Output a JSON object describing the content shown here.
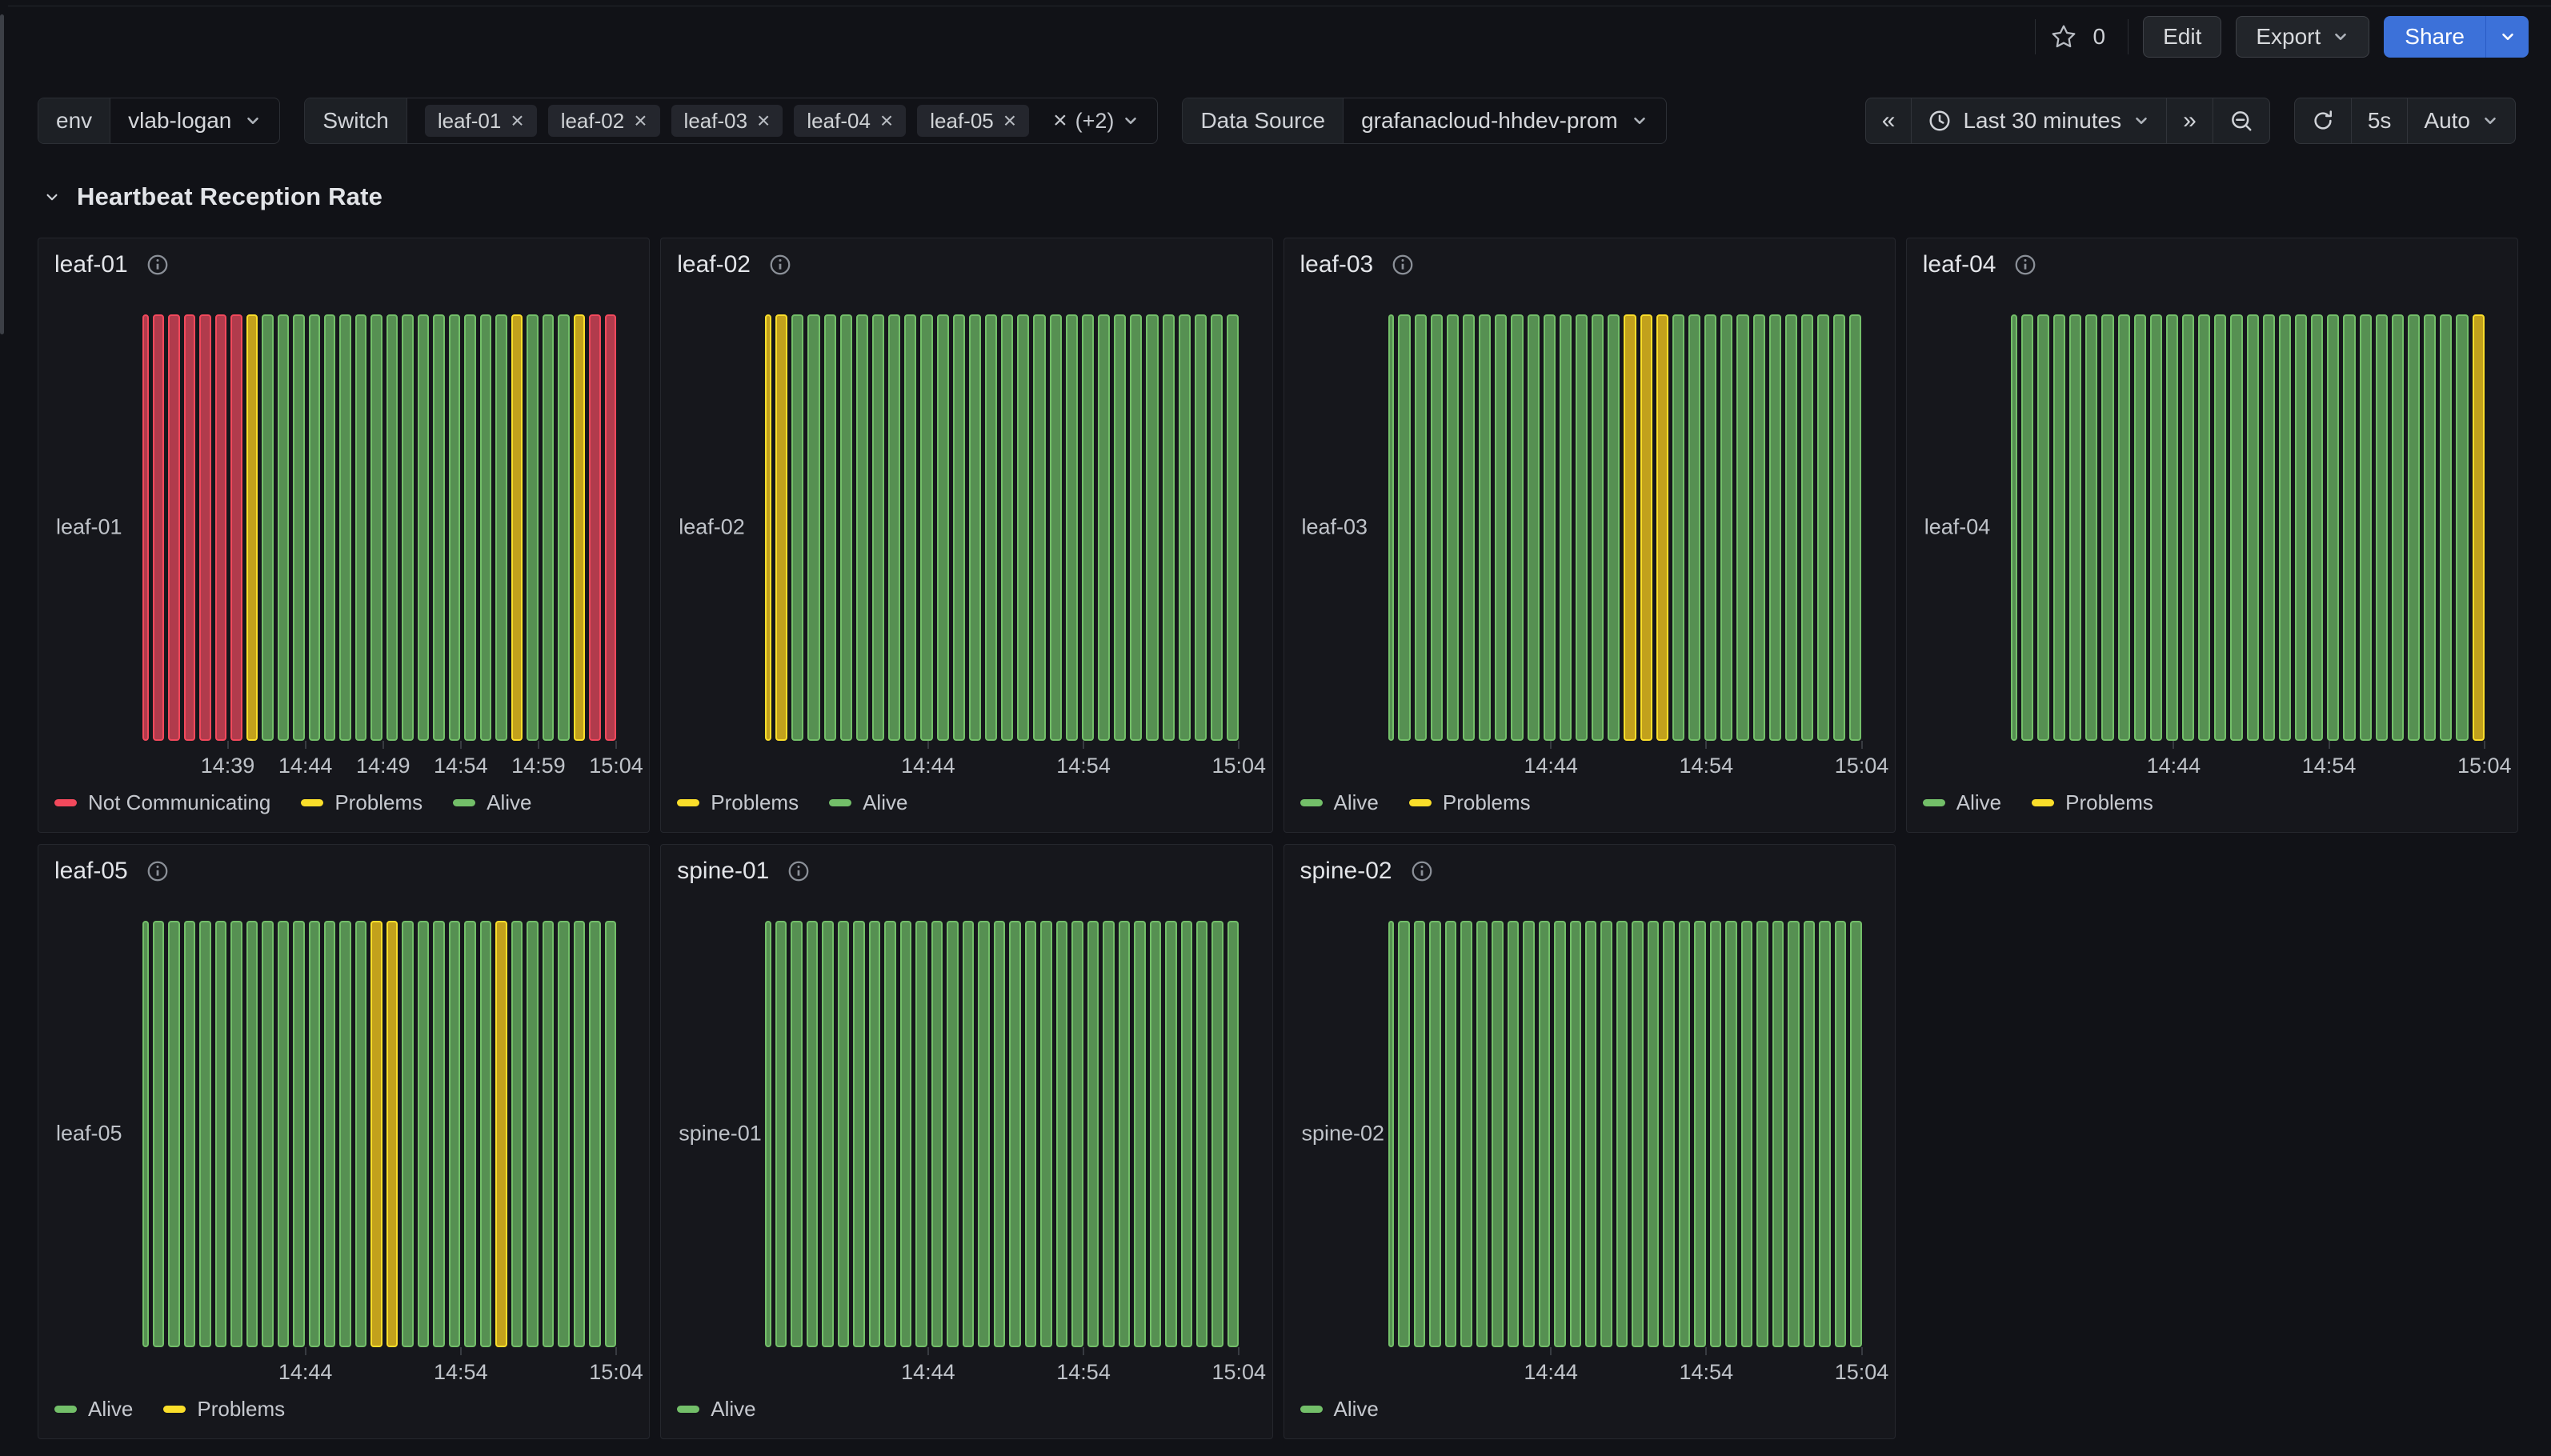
{
  "toolbar": {
    "star_count": "0",
    "edit": "Edit",
    "export": "Export",
    "share": "Share"
  },
  "filterbar": {
    "env_label": "env",
    "env_value": "vlab-logan",
    "switch_label": "Switch",
    "switch_chips": [
      "leaf-01",
      "leaf-02",
      "leaf-03",
      "leaf-04",
      "leaf-05"
    ],
    "switch_more": "(+2)",
    "chip_close_glyph": "×",
    "clear_all_glyph": "×",
    "datasource_label": "Data Source",
    "datasource_value": "grafanacloud-hhdev-prom"
  },
  "timebar": {
    "back_glyph": "«",
    "range": "Last 30 minutes",
    "forward_glyph": "»",
    "interval": "5s",
    "refresh_mode": "Auto"
  },
  "section_title": "Heartbeat Reception Rate",
  "state_colors": {
    "alive": {
      "stroke": "#73BF69",
      "fill": "#569052",
      "legend": "#73BF69"
    },
    "problems": {
      "stroke": "#FADE2A",
      "fill": "#C2A11C",
      "legend": "#FADE2A"
    },
    "not_communicating": {
      "stroke": "#F2495C",
      "fill": "#B13B4C",
      "legend": "#F2495C"
    }
  },
  "chart_data": [
    {
      "type": "state-timeline",
      "title": "leaf-01",
      "y_label": "leaf-01",
      "time_window": [
        "14:34",
        "15:04"
      ],
      "segments": [
        {
          "state": "not_communicating",
          "count": 0.35
        },
        {
          "state": "not_communicating",
          "count": 6
        },
        {
          "state": "problems",
          "count": 1
        },
        {
          "state": "alive",
          "count": 16
        },
        {
          "state": "problems",
          "count": 1
        },
        {
          "state": "alive",
          "count": 3
        },
        {
          "state": "problems",
          "count": 1
        },
        {
          "state": "not_communicating",
          "count": 2
        }
      ],
      "ticks": [
        {
          "label": "14:39",
          "pos": 0.18
        },
        {
          "label": "14:44",
          "pos": 0.344
        },
        {
          "label": "14:49",
          "pos": 0.508
        },
        {
          "label": "14:54",
          "pos": 0.672
        },
        {
          "label": "14:59",
          "pos": 0.836
        },
        {
          "label": "15:04",
          "pos": 1.0
        }
      ],
      "legend": [
        {
          "state": "not_communicating",
          "label": "Not Communicating"
        },
        {
          "state": "problems",
          "label": "Problems"
        },
        {
          "state": "alive",
          "label": "Alive"
        }
      ]
    },
    {
      "type": "state-timeline",
      "title": "leaf-02",
      "y_label": "leaf-02",
      "time_window": [
        "14:34",
        "15:04"
      ],
      "segments": [
        {
          "state": "problems",
          "count": 0.35
        },
        {
          "state": "problems",
          "count": 1
        },
        {
          "state": "alive",
          "count": 28
        }
      ],
      "ticks": [
        {
          "label": "14:44",
          "pos": 0.344
        },
        {
          "label": "14:54",
          "pos": 0.672
        },
        {
          "label": "15:04",
          "pos": 1.0
        }
      ],
      "legend": [
        {
          "state": "problems",
          "label": "Problems"
        },
        {
          "state": "alive",
          "label": "Alive"
        }
      ]
    },
    {
      "type": "state-timeline",
      "title": "leaf-03",
      "y_label": "leaf-03",
      "time_window": [
        "14:34",
        "15:04"
      ],
      "segments": [
        {
          "state": "alive",
          "count": 0.35
        },
        {
          "state": "alive",
          "count": 14
        },
        {
          "state": "problems",
          "count": 3
        },
        {
          "state": "alive",
          "count": 12
        }
      ],
      "ticks": [
        {
          "label": "14:44",
          "pos": 0.344
        },
        {
          "label": "14:54",
          "pos": 0.672
        },
        {
          "label": "15:04",
          "pos": 1.0
        }
      ],
      "legend": [
        {
          "state": "alive",
          "label": "Alive"
        },
        {
          "state": "problems",
          "label": "Problems"
        }
      ]
    },
    {
      "type": "state-timeline",
      "title": "leaf-04",
      "y_label": "leaf-04",
      "time_window": [
        "14:34",
        "15:04"
      ],
      "segments": [
        {
          "state": "alive",
          "count": 0.35
        },
        {
          "state": "alive",
          "count": 28
        },
        {
          "state": "problems",
          "count": 1
        }
      ],
      "ticks": [
        {
          "label": "14:44",
          "pos": 0.344
        },
        {
          "label": "14:54",
          "pos": 0.672
        },
        {
          "label": "15:04",
          "pos": 1.0
        }
      ],
      "legend": [
        {
          "state": "alive",
          "label": "Alive"
        },
        {
          "state": "problems",
          "label": "Problems"
        }
      ]
    },
    {
      "type": "state-timeline",
      "title": "leaf-05",
      "y_label": "leaf-05",
      "time_window": [
        "14:34",
        "15:04"
      ],
      "segments": [
        {
          "state": "alive",
          "count": 0.35
        },
        {
          "state": "alive",
          "count": 14
        },
        {
          "state": "problems",
          "count": 2
        },
        {
          "state": "alive",
          "count": 6
        },
        {
          "state": "problems",
          "count": 1
        },
        {
          "state": "alive",
          "count": 7
        }
      ],
      "ticks": [
        {
          "label": "14:44",
          "pos": 0.344
        },
        {
          "label": "14:54",
          "pos": 0.672
        },
        {
          "label": "15:04",
          "pos": 1.0
        }
      ],
      "legend": [
        {
          "state": "alive",
          "label": "Alive"
        },
        {
          "state": "problems",
          "label": "Problems"
        }
      ]
    },
    {
      "type": "state-timeline",
      "title": "spine-01",
      "y_label": "spine-01",
      "time_window": [
        "14:34",
        "15:04"
      ],
      "segments": [
        {
          "state": "alive",
          "count": 0.35
        },
        {
          "state": "alive",
          "count": 30
        }
      ],
      "ticks": [
        {
          "label": "14:44",
          "pos": 0.344
        },
        {
          "label": "14:54",
          "pos": 0.672
        },
        {
          "label": "15:04",
          "pos": 1.0
        }
      ],
      "legend": [
        {
          "state": "alive",
          "label": "Alive"
        }
      ]
    },
    {
      "type": "state-timeline",
      "title": "spine-02",
      "y_label": "spine-02",
      "time_window": [
        "14:34",
        "15:04"
      ],
      "segments": [
        {
          "state": "alive",
          "count": 0.35
        },
        {
          "state": "alive",
          "count": 30
        }
      ],
      "ticks": [
        {
          "label": "14:44",
          "pos": 0.344
        },
        {
          "label": "14:54",
          "pos": 0.672
        },
        {
          "label": "15:04",
          "pos": 1.0
        }
      ],
      "legend": [
        {
          "state": "alive",
          "label": "Alive"
        }
      ]
    }
  ]
}
